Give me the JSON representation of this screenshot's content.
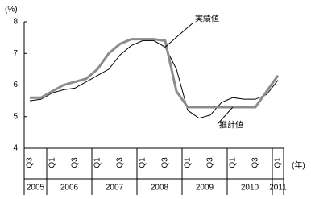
{
  "chart_data": {
    "type": "line",
    "y_unit": "(%)",
    "x_unit": "(年)",
    "categories": [
      "Q3",
      null,
      "Q1",
      null,
      "Q3",
      null,
      "Q1",
      null,
      "Q3",
      null,
      "Q1",
      null,
      "Q3",
      null,
      "Q1",
      null,
      "Q3",
      null,
      "Q1",
      null,
      "Q3",
      null,
      "Q1"
    ],
    "years": [
      "2005",
      "2006",
      "2007",
      "2008",
      "2009",
      "2010",
      "2011"
    ],
    "series": [
      {
        "name": "実績値",
        "color": "#000000",
        "width": 1,
        "values": [
          5.5,
          5.55,
          5.75,
          5.85,
          5.9,
          6.1,
          6.3,
          6.5,
          6.95,
          7.25,
          7.4,
          7.4,
          7.2,
          6.5,
          5.2,
          4.95,
          5.05,
          5.45,
          5.6,
          5.55,
          5.55,
          5.7,
          6.15
        ]
      },
      {
        "name": "推計値",
        "color": "#8c8c8c",
        "width": 3,
        "values": [
          5.6,
          5.6,
          5.8,
          6.0,
          6.1,
          6.2,
          6.5,
          7.0,
          7.3,
          7.45,
          7.45,
          7.45,
          7.4,
          5.8,
          5.3,
          5.3,
          5.3,
          5.3,
          5.3,
          5.3,
          5.3,
          5.8,
          6.3
        ]
      }
    ],
    "ylim": [
      4,
      8
    ],
    "yticks": [
      4,
      5,
      6,
      7,
      8
    ],
    "grid": false
  }
}
